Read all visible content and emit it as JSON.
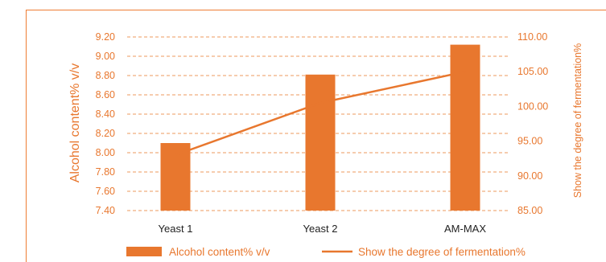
{
  "colors": {
    "accent": "#e8772e",
    "grid": "#ee9a5c"
  },
  "chart_data": {
    "type": "bar+line",
    "categories": [
      "Yeast 1",
      "Yeast 2",
      "AM-MAX"
    ],
    "series": [
      {
        "name": "Alcohol content% v/v",
        "type": "bar",
        "axis": "left",
        "values": [
          8.1,
          8.81,
          9.12
        ]
      },
      {
        "name": "Show the degree of fermentation%",
        "type": "line",
        "axis": "right",
        "values": [
          93.0,
          100.5,
          105.0
        ]
      }
    ],
    "ylabel": "Alcohol content% v/v",
    "y2label": "Show the degree of fermentation%",
    "ylim": [
      7.4,
      9.2
    ],
    "y2lim": [
      85.0,
      110.0
    ],
    "yticks": [
      "7.40",
      "7.60",
      "7.80",
      "8.00",
      "8.20",
      "8.40",
      "8.60",
      "8.80",
      "9.00",
      "9.20"
    ],
    "y2ticks": [
      "85.00",
      "90.00",
      "95.00",
      "100.00",
      "105.00",
      "110.00"
    ],
    "grid": true,
    "legend_position": "bottom"
  }
}
